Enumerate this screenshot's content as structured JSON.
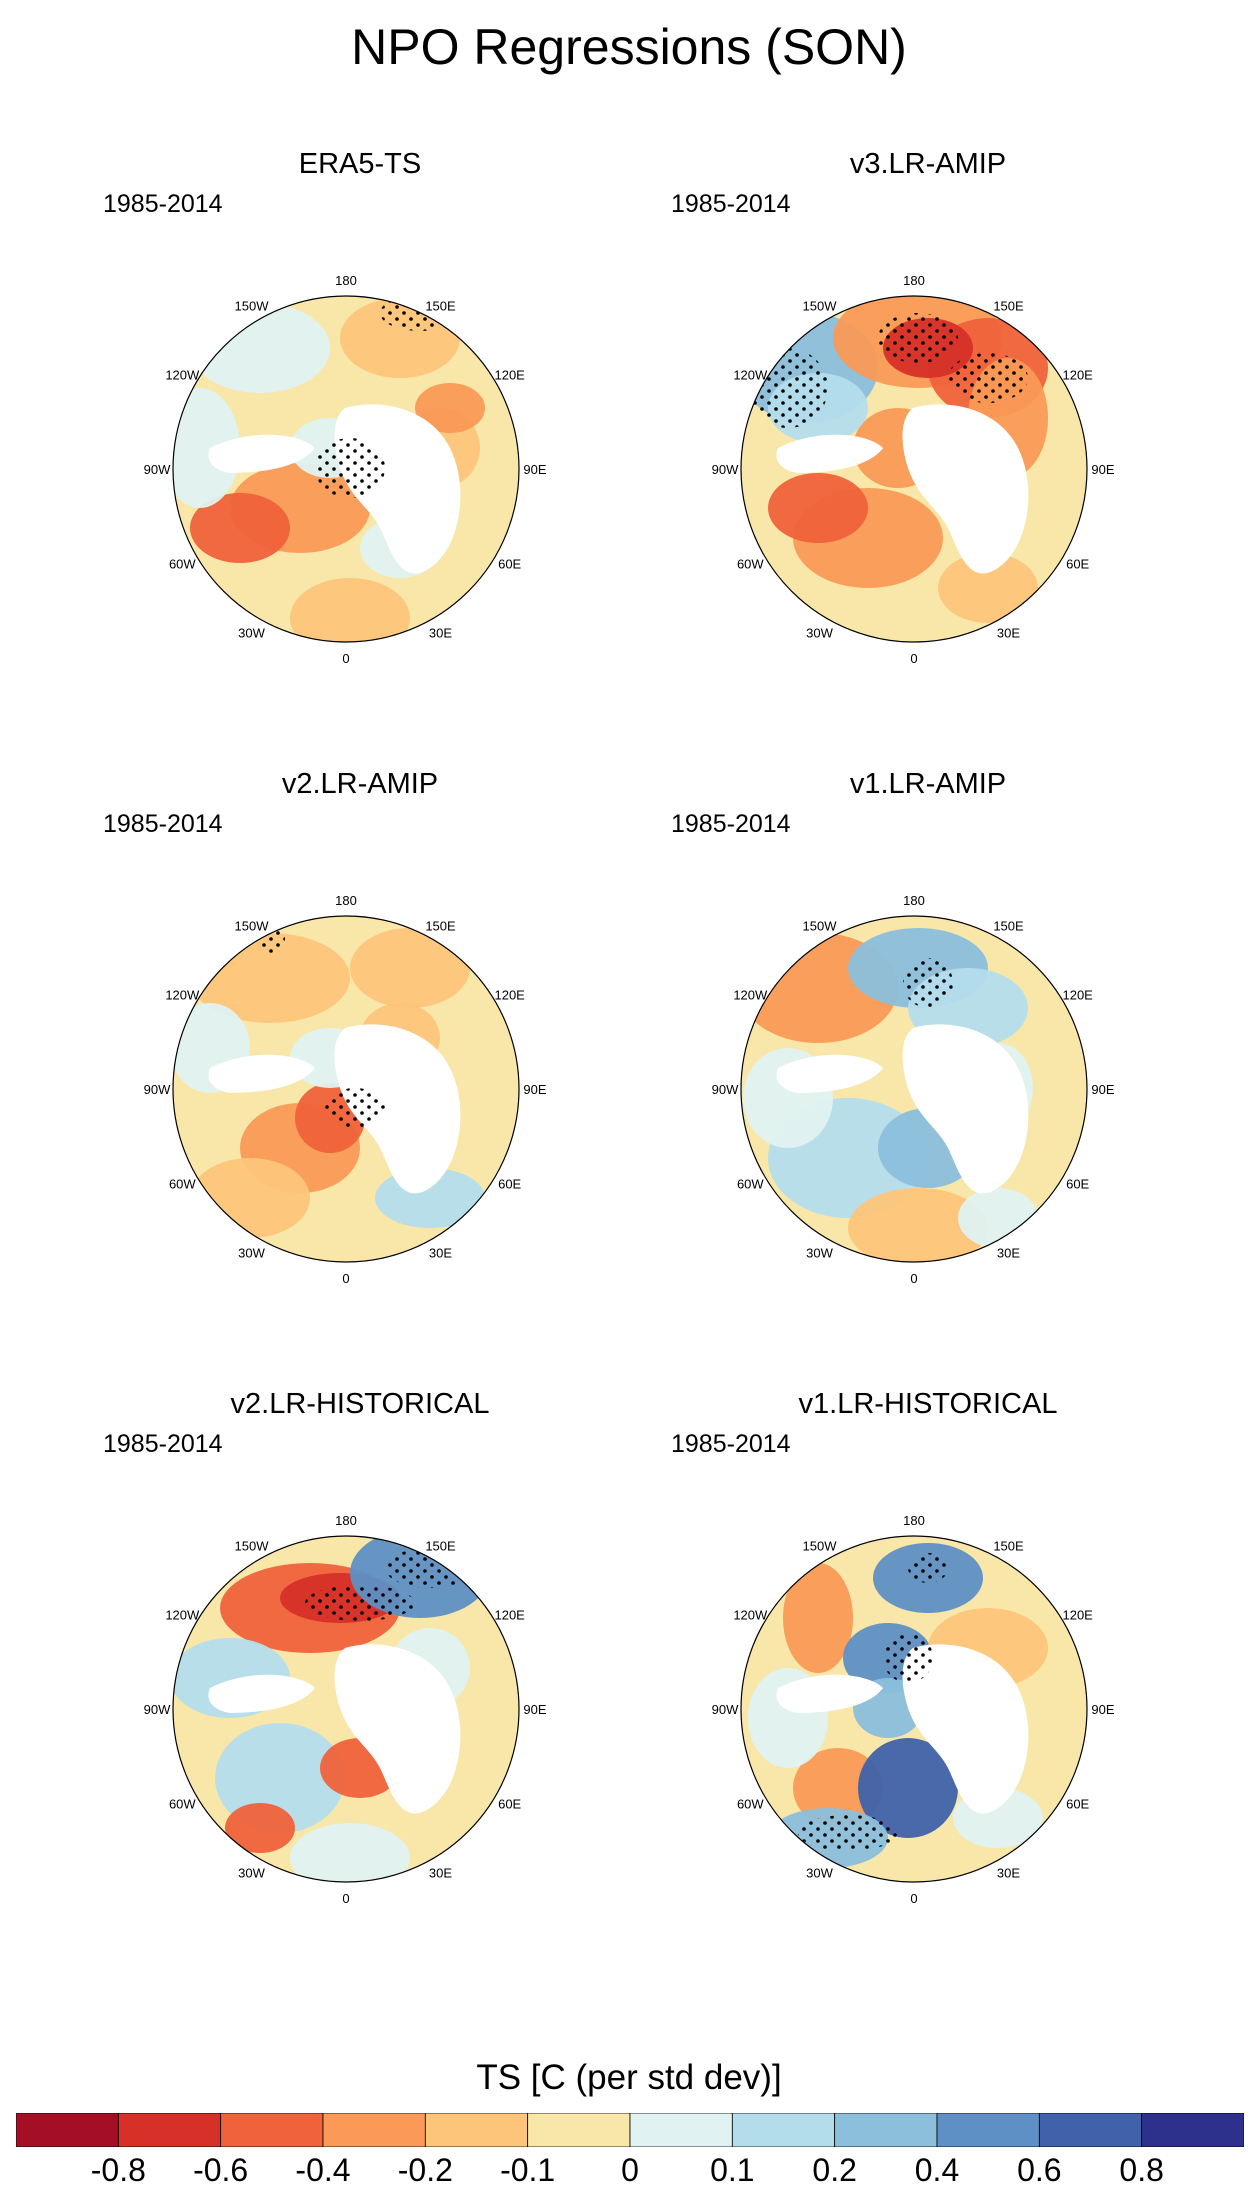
{
  "figure": {
    "title": "NPO Regressions (SON)",
    "period": "1985-2014"
  },
  "panels": [
    {
      "id": "era5",
      "title": "ERA5-TS",
      "years": "1985-2014"
    },
    {
      "id": "v3amip",
      "title": "v3.LR-AMIP",
      "years": "1985-2014"
    },
    {
      "id": "v2amip",
      "title": "v2.LR-AMIP",
      "years": "1985-2014"
    },
    {
      "id": "v1amip",
      "title": "v1.LR-AMIP",
      "years": "1985-2014"
    },
    {
      "id": "v2hist",
      "title": "v2.LR-HISTORICAL",
      "years": "1985-2014"
    },
    {
      "id": "v1hist",
      "title": "v1.LR-HISTORICAL",
      "years": "1985-2014"
    }
  ],
  "longitude_labels": [
    "180",
    "150E",
    "120E",
    "90E",
    "60E",
    "30E",
    "0",
    "30W",
    "60W",
    "90W",
    "120W",
    "150W"
  ],
  "colorbar": {
    "title": "TS [C (per std dev)]",
    "ticks": [
      "-0.8",
      "-0.6",
      "-0.4",
      "-0.2",
      "-0.1",
      "0",
      "0.1",
      "0.2",
      "0.4",
      "0.6",
      "0.8"
    ],
    "colors": [
      "#a50f26",
      "#d63028",
      "#ef623b",
      "#fa9a56",
      "#fdc57a",
      "#f8e7a9",
      "#e0f2f1",
      "#b4ddec",
      "#8bbfdc",
      "#5e90c5",
      "#4062ab",
      "#2e318c"
    ]
  }
}
